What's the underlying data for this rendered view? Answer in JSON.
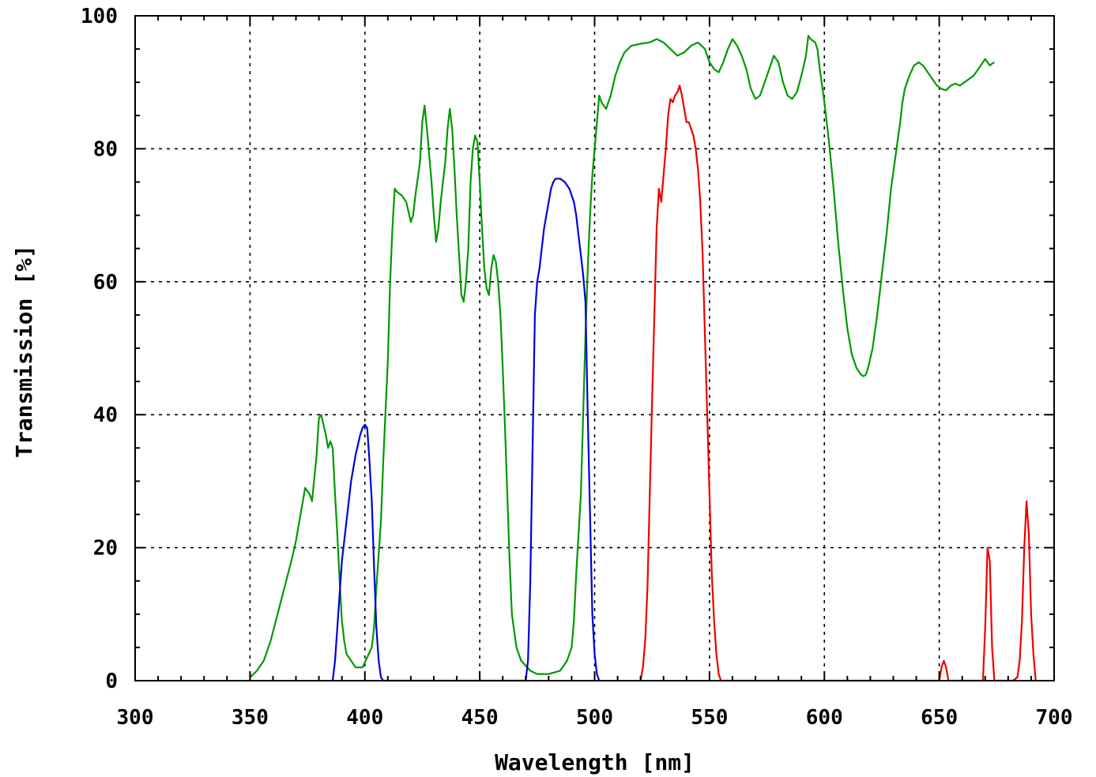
{
  "chart_data": {
    "type": "line",
    "title": "",
    "xlabel": "Wavelength [nm]",
    "ylabel": "Transmission [%]",
    "xlim": [
      300,
      700
    ],
    "ylim": [
      0,
      100
    ],
    "x_ticks": [
      300,
      350,
      400,
      450,
      500,
      550,
      600,
      650,
      700
    ],
    "y_ticks": [
      0,
      20,
      40,
      60,
      80,
      100
    ],
    "grid": true,
    "series": [
      {
        "color": "#009900",
        "points": [
          [
            350,
            0.5
          ],
          [
            353,
            1.5
          ],
          [
            356,
            3
          ],
          [
            359,
            6
          ],
          [
            362,
            10
          ],
          [
            365,
            14
          ],
          [
            368,
            18
          ],
          [
            370,
            21
          ],
          [
            372,
            25
          ],
          [
            374,
            29
          ],
          [
            376,
            28
          ],
          [
            377,
            27
          ],
          [
            379,
            34
          ],
          [
            380,
            39.5
          ],
          [
            381,
            40
          ],
          [
            383,
            37
          ],
          [
            384,
            35
          ],
          [
            385,
            36
          ],
          [
            386,
            35
          ],
          [
            387,
            28
          ],
          [
            388,
            22
          ],
          [
            389,
            15
          ],
          [
            390,
            9
          ],
          [
            391,
            6
          ],
          [
            392,
            4
          ],
          [
            394,
            3
          ],
          [
            396,
            2
          ],
          [
            399,
            2
          ],
          [
            401,
            3.5
          ],
          [
            403,
            5
          ],
          [
            404,
            8
          ],
          [
            405,
            14
          ],
          [
            407,
            24
          ],
          [
            408,
            33
          ],
          [
            410,
            48
          ],
          [
            411,
            60
          ],
          [
            412,
            68
          ],
          [
            413,
            74
          ],
          [
            414,
            73.5
          ],
          [
            416,
            73
          ],
          [
            418,
            72
          ],
          [
            420,
            69
          ],
          [
            421,
            70
          ],
          [
            422,
            73
          ],
          [
            424,
            78
          ],
          [
            425,
            84
          ],
          [
            426,
            86.5
          ],
          [
            427,
            83
          ],
          [
            428,
            79
          ],
          [
            429,
            75
          ],
          [
            430,
            70
          ],
          [
            431,
            66
          ],
          [
            432,
            68
          ],
          [
            433,
            72
          ],
          [
            435,
            78
          ],
          [
            436,
            83
          ],
          [
            437,
            86
          ],
          [
            438,
            83
          ],
          [
            439,
            77
          ],
          [
            440,
            70
          ],
          [
            441,
            64
          ],
          [
            442,
            58
          ],
          [
            443,
            57
          ],
          [
            444,
            60
          ],
          [
            445,
            65
          ],
          [
            446,
            75
          ],
          [
            447,
            80
          ],
          [
            448,
            82
          ],
          [
            449,
            81
          ],
          [
            450,
            75
          ],
          [
            451,
            68
          ],
          [
            452,
            62
          ],
          [
            453,
            59
          ],
          [
            454,
            58
          ],
          [
            455,
            62
          ],
          [
            456,
            64
          ],
          [
            457,
            63
          ],
          [
            458,
            60
          ],
          [
            459,
            55
          ],
          [
            460,
            47
          ],
          [
            461,
            38
          ],
          [
            462,
            28
          ],
          [
            463,
            18
          ],
          [
            464,
            10
          ],
          [
            466,
            5
          ],
          [
            468,
            3
          ],
          [
            472,
            1.5
          ],
          [
            475,
            1
          ],
          [
            480,
            1
          ],
          [
            485,
            1.5
          ],
          [
            488,
            3
          ],
          [
            490,
            5
          ],
          [
            491,
            9
          ],
          [
            492,
            16
          ],
          [
            494,
            28
          ],
          [
            495,
            40
          ],
          [
            496,
            52
          ],
          [
            497,
            62
          ],
          [
            498,
            70
          ],
          [
            499,
            76
          ],
          [
            500,
            80
          ],
          [
            501,
            84
          ],
          [
            502,
            88
          ],
          [
            503,
            87
          ],
          [
            505,
            86
          ],
          [
            507,
            88
          ],
          [
            509,
            91
          ],
          [
            511,
            93
          ],
          [
            513,
            94.5
          ],
          [
            516,
            95.5
          ],
          [
            520,
            95.8
          ],
          [
            524,
            96
          ],
          [
            527,
            96.5
          ],
          [
            530,
            96
          ],
          [
            533,
            95
          ],
          [
            536,
            94
          ],
          [
            539,
            94.5
          ],
          [
            542,
            95.5
          ],
          [
            545,
            96
          ],
          [
            548,
            95
          ],
          [
            550,
            93
          ],
          [
            552,
            92
          ],
          [
            554,
            91.5
          ],
          [
            556,
            93
          ],
          [
            558,
            95
          ],
          [
            560,
            96.5
          ],
          [
            562,
            95.5
          ],
          [
            564,
            94
          ],
          [
            566,
            92
          ],
          [
            568,
            89
          ],
          [
            570,
            87.5
          ],
          [
            572,
            88
          ],
          [
            574,
            90
          ],
          [
            576,
            92
          ],
          [
            578,
            94
          ],
          [
            580,
            93
          ],
          [
            582,
            90
          ],
          [
            584,
            88
          ],
          [
            586,
            87.5
          ],
          [
            588,
            88.5
          ],
          [
            590,
            91
          ],
          [
            592,
            94
          ],
          [
            593,
            97
          ],
          [
            594,
            96.5
          ],
          [
            596,
            96
          ],
          [
            597,
            95
          ],
          [
            598,
            92
          ],
          [
            600,
            87
          ],
          [
            602,
            81
          ],
          [
            604,
            74
          ],
          [
            606,
            66
          ],
          [
            608,
            59
          ],
          [
            610,
            53
          ],
          [
            612,
            49
          ],
          [
            614,
            47
          ],
          [
            616,
            46
          ],
          [
            617,
            45.8
          ],
          [
            618,
            46
          ],
          [
            619,
            47
          ],
          [
            621,
            50
          ],
          [
            623,
            55
          ],
          [
            625,
            61
          ],
          [
            627,
            67
          ],
          [
            629,
            74
          ],
          [
            631,
            79
          ],
          [
            633,
            84
          ],
          [
            634,
            87
          ],
          [
            635,
            89
          ],
          [
            637,
            91
          ],
          [
            639,
            92.5
          ],
          [
            641,
            93
          ],
          [
            643,
            92.5
          ],
          [
            645,
            91.5
          ],
          [
            647,
            90.5
          ],
          [
            649,
            89.5
          ],
          [
            651,
            89
          ],
          [
            653,
            88.8
          ],
          [
            655,
            89.5
          ],
          [
            657,
            89.8
          ],
          [
            659,
            89.5
          ],
          [
            661,
            90
          ],
          [
            663,
            90.5
          ],
          [
            665,
            91
          ],
          [
            667,
            92
          ],
          [
            669,
            93
          ],
          [
            670,
            93.5
          ],
          [
            671,
            93
          ],
          [
            672,
            92.5
          ],
          [
            673,
            92.8
          ],
          [
            674,
            93
          ]
        ]
      },
      {
        "color": "#0000dd",
        "points": [
          [
            386,
            0
          ],
          [
            387,
            3
          ],
          [
            388,
            8
          ],
          [
            389,
            13
          ],
          [
            390,
            18
          ],
          [
            391,
            21
          ],
          [
            392,
            24
          ],
          [
            393,
            27
          ],
          [
            394,
            30
          ],
          [
            395,
            32
          ],
          [
            396,
            34
          ],
          [
            397,
            35.5
          ],
          [
            398,
            37
          ],
          [
            399,
            38
          ],
          [
            400,
            38.5
          ],
          [
            401,
            38
          ],
          [
            402,
            33
          ],
          [
            403,
            27
          ],
          [
            404,
            17
          ],
          [
            405,
            8
          ],
          [
            406,
            3
          ],
          [
            407,
            0.5
          ],
          [
            408,
            0
          ],
          [
            470,
            0
          ],
          [
            471,
            3
          ],
          [
            472,
            15
          ],
          [
            473,
            35
          ],
          [
            474,
            55
          ],
          [
            475,
            60
          ],
          [
            476,
            62
          ],
          [
            477,
            65
          ],
          [
            478,
            68
          ],
          [
            479,
            70
          ],
          [
            480,
            72
          ],
          [
            481,
            74
          ],
          [
            482,
            75
          ],
          [
            483,
            75.5
          ],
          [
            485,
            75.5
          ],
          [
            487,
            75
          ],
          [
            489,
            74
          ],
          [
            491,
            72
          ],
          [
            492,
            70
          ],
          [
            493,
            67
          ],
          [
            494,
            64
          ],
          [
            495,
            61
          ],
          [
            496,
            57
          ],
          [
            497,
            40
          ],
          [
            498,
            25
          ],
          [
            499,
            10
          ],
          [
            500,
            4
          ],
          [
            501,
            1
          ],
          [
            502,
            0
          ]
        ]
      },
      {
        "color": "#ee0000",
        "points": [
          [
            520,
            0
          ],
          [
            521,
            2
          ],
          [
            522,
            6
          ],
          [
            523,
            14
          ],
          [
            524,
            28
          ],
          [
            525,
            42
          ],
          [
            526,
            55
          ],
          [
            527,
            68
          ],
          [
            528,
            74
          ],
          [
            529,
            72
          ],
          [
            530,
            76
          ],
          [
            531,
            80
          ],
          [
            532,
            85
          ],
          [
            533,
            87.5
          ],
          [
            534,
            87
          ],
          [
            535,
            88
          ],
          [
            536,
            88.5
          ],
          [
            537,
            89.5
          ],
          [
            538,
            88
          ],
          [
            539,
            86
          ],
          [
            540,
            84
          ],
          [
            541,
            84
          ],
          [
            542,
            83
          ],
          [
            543,
            82
          ],
          [
            544,
            80
          ],
          [
            545,
            77
          ],
          [
            546,
            72
          ],
          [
            547,
            64
          ],
          [
            548,
            52
          ],
          [
            549,
            40
          ],
          [
            550,
            28
          ],
          [
            551,
            16
          ],
          [
            552,
            9
          ],
          [
            553,
            4
          ],
          [
            554,
            1
          ],
          [
            555,
            0
          ],
          [
            650,
            0
          ],
          [
            651,
            2
          ],
          [
            652,
            3
          ],
          [
            653,
            2
          ],
          [
            654,
            0
          ],
          [
            669,
            0
          ],
          [
            670,
            8
          ],
          [
            671,
            20
          ],
          [
            672,
            18
          ],
          [
            673,
            5
          ],
          [
            674,
            0
          ],
          [
            682,
            0
          ],
          [
            684,
            0.5
          ],
          [
            685,
            3
          ],
          [
            686,
            9
          ],
          [
            687,
            20
          ],
          [
            688,
            27
          ],
          [
            689,
            22
          ],
          [
            690,
            10
          ],
          [
            691,
            4
          ],
          [
            692,
            0
          ]
        ]
      }
    ]
  }
}
